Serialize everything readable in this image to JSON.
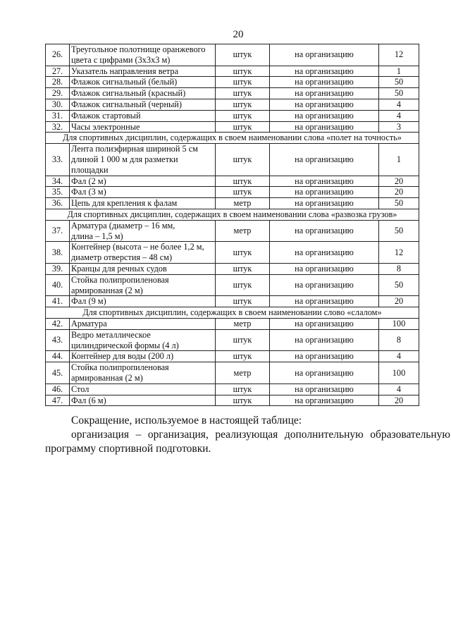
{
  "page_number": "20",
  "table": {
    "rows": [
      {
        "num": "26.",
        "name": "Треугольное полотнище оранжевого\nцвета с цифрами (3х3х3 м)",
        "unit": "штук",
        "basis": "на организацию",
        "qty": "12"
      },
      {
        "num": "27.",
        "name": "Указатель направления ветра",
        "unit": "штук",
        "basis": "на организацию",
        "qty": "1"
      },
      {
        "num": "28.",
        "name": "Флажок сигнальный (белый)",
        "unit": "штук",
        "basis": "на организацию",
        "qty": "50"
      },
      {
        "num": "29.",
        "name": "Флажок сигнальный (красный)",
        "unit": "штук",
        "basis": "на организацию",
        "qty": "50"
      },
      {
        "num": "30.",
        "name": "Флажок сигнальный (черный)",
        "unit": "штук",
        "basis": "на организацию",
        "qty": "4"
      },
      {
        "num": "31.",
        "name": "Флажок стартовый",
        "unit": "штук",
        "basis": "на организацию",
        "qty": "4"
      },
      {
        "num": "32.",
        "name": "Часы электронные",
        "unit": "штук",
        "basis": "на организацию",
        "qty": "3"
      },
      {
        "section": "Для спортивных дисциплин, содержащих в своем наименовании слова «полет на точность»"
      },
      {
        "num": "33.",
        "name": "Лента полиэфирная шириной 5 см\nдлиной 1 000 м для разметки\nплощадки",
        "unit": "штук",
        "basis": "на организацию",
        "qty": "1"
      },
      {
        "num": "34.",
        "name": "Фал (2 м)",
        "unit": "штук",
        "basis": "на организацию",
        "qty": "20"
      },
      {
        "num": "35.",
        "name": "Фал (3 м)",
        "unit": "штук",
        "basis": "на организацию",
        "qty": "20"
      },
      {
        "num": "36.",
        "name": "Цепь для крепления к фалам",
        "unit": "метр",
        "basis": "на организацию",
        "qty": "50"
      },
      {
        "section": "Для спортивных дисциплин, содержащих в своем наименовании слова «развозка грузов»"
      },
      {
        "num": "37.",
        "name": "Арматура (диаметр – 16 мм,\nдлина – 1,5 м)",
        "unit": "метр",
        "basis": "на организацию",
        "qty": "50"
      },
      {
        "num": "38.",
        "name": "Контейнер (высота – не более 1,2 м,\nдиаметр отверстия – 48 см)",
        "unit": "штук",
        "basis": "на организацию",
        "qty": "12"
      },
      {
        "num": "39.",
        "name": "Кранцы для речных судов",
        "unit": "штук",
        "basis": "на организацию",
        "qty": "8"
      },
      {
        "num": "40.",
        "name": "Стойка полипропиленовая\nармированная (2 м)",
        "unit": "штук",
        "basis": "на организацию",
        "qty": "50"
      },
      {
        "num": "41.",
        "name": "Фал (9 м)",
        "unit": "штук",
        "basis": "на организацию",
        "qty": "20"
      },
      {
        "section": "Для спортивных дисциплин, содержащих в своем наименовании слово «слалом»"
      },
      {
        "num": "42.",
        "name": "Арматура",
        "unit": "метр",
        "basis": "на организацию",
        "qty": "100"
      },
      {
        "num": "43.",
        "name": "Ведро металлическое\nцилиндрической формы (4 л)",
        "unit": "штук",
        "basis": "на организацию",
        "qty": "8"
      },
      {
        "num": "44.",
        "name": "Контейнер для воды (200 л)",
        "unit": "штук",
        "basis": "на организацию",
        "qty": "4"
      },
      {
        "num": "45.",
        "name": "Стойка полипропиленовая\nармированная (2 м)",
        "unit": "метр",
        "basis": "на организацию",
        "qty": "100"
      },
      {
        "num": "46.",
        "name": "Стол",
        "unit": "штук",
        "basis": "на организацию",
        "qty": "4"
      },
      {
        "num": "47.",
        "name": "Фал (6 м)",
        "unit": "штук",
        "basis": "на организацию",
        "qty": "20"
      }
    ]
  },
  "footer": {
    "heading": "Сокращение, используемое в настоящей таблице:",
    "definition": "организация – организация, реализующая дополнительную образовательную программу спортивной подготовки."
  }
}
